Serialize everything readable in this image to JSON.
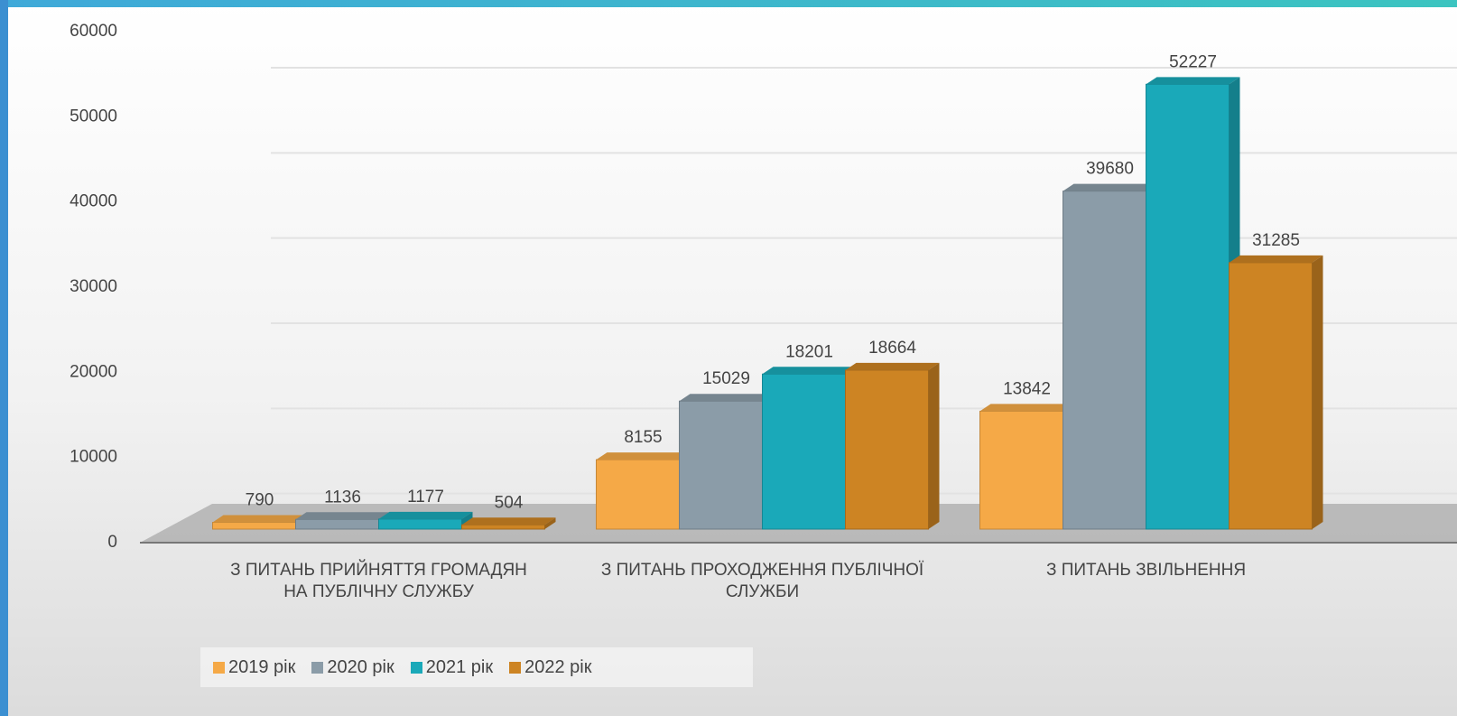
{
  "chart_data": {
    "type": "bar",
    "categories": [
      "З ПИТАНЬ ПРИЙНЯТТЯ ГРОМАДЯН НА ПУБЛІЧНУ СЛУЖБУ",
      "З ПИТАНЬ ПРОХОДЖЕННЯ ПУБЛІЧНОЇ СЛУЖБИ",
      "З ПИТАНЬ ЗВІЛЬНЕННЯ"
    ],
    "series": [
      {
        "name": "2019 рік",
        "color": "#f5a947",
        "values": [
          790,
          8155,
          13842
        ]
      },
      {
        "name": "2020 рік",
        "color": "#8b9ca8",
        "values": [
          1136,
          15029,
          39680
        ]
      },
      {
        "name": "2021 рік",
        "color": "#1aa9b9",
        "values": [
          1177,
          18201,
          52227
        ]
      },
      {
        "name": "2022 рік",
        "color": "#cd8423",
        "values": [
          504,
          18664,
          31285
        ]
      }
    ],
    "ylim": [
      0,
      60000
    ],
    "yticks": [
      0,
      10000,
      20000,
      30000,
      40000,
      50000,
      60000
    ],
    "grid": true,
    "legend": "bottom"
  }
}
